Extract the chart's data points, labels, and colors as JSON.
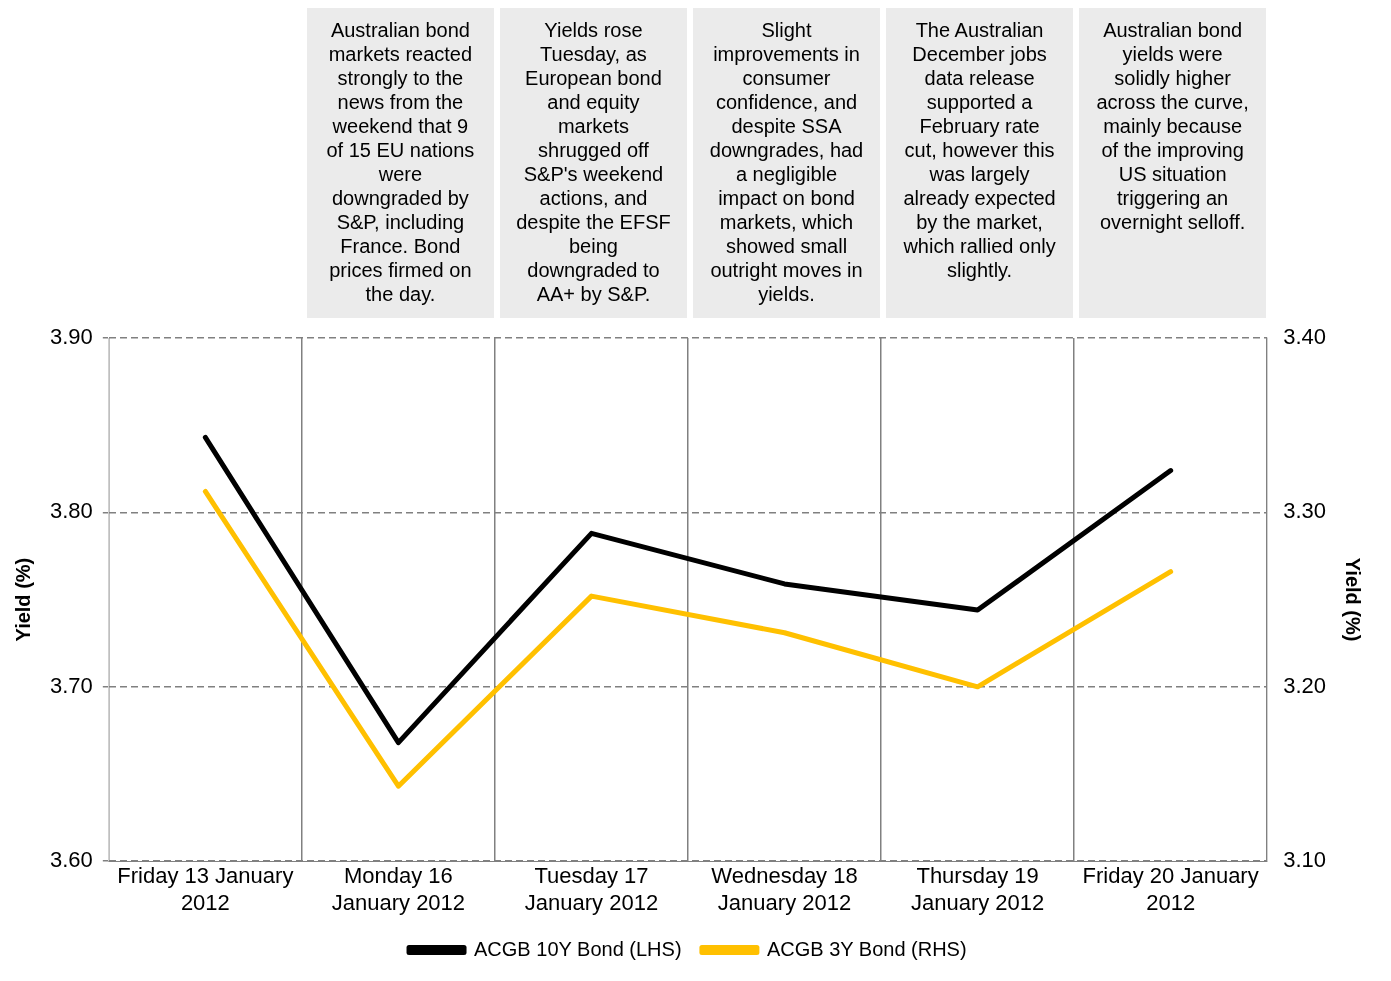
{
  "chart_data": {
    "type": "line",
    "categories": [
      "Friday 13 January 2012",
      "Monday 16 January 2012",
      "Tuesday 17 January 2012",
      "Wednesday 18 January 2012",
      "Thursday 19 January 2012",
      "Friday 20 January 2012"
    ],
    "series": [
      {
        "name": "ACGB 10Y Bond (LHS)",
        "color": "#000000",
        "values": [
          3.843,
          3.668,
          3.788,
          3.759,
          3.744,
          3.824
        ]
      },
      {
        "name": "ACGB 3Y Bond (RHS)",
        "color": "#ffc000",
        "axis": "y2",
        "values": [
          3.312,
          3.143,
          3.252,
          3.231,
          3.2,
          3.266
        ]
      }
    ],
    "ylabel": "Yield (%)",
    "y2label": "Yield (%)",
    "ylim": [
      3.6,
      3.9
    ],
    "yticks": [
      {
        "value": 3.6,
        "label": "3.60"
      },
      {
        "value": 3.7,
        "label": "3.70"
      },
      {
        "value": 3.8,
        "label": "3.80"
      },
      {
        "value": 3.9,
        "label": "3.90"
      }
    ],
    "y2lim": [
      3.1,
      3.4
    ],
    "y2ticks": [
      {
        "value": 3.1,
        "label": "3.10"
      },
      {
        "value": 3.2,
        "label": "3.20"
      },
      {
        "value": 3.3,
        "label": "3.30"
      },
      {
        "value": 3.4,
        "label": "3.40"
      }
    ],
    "grid": true,
    "legend": "bottom",
    "annotations": [
      "Australian bond markets reacted strongly to the news from the weekend that 9 of 15 EU nations were downgraded by S&P, including France. Bond prices firmed on the day.",
      "Yields rose Tuesday, as European bond and equity markets shrugged off S&P's weekend actions, and despite the EFSF being downgraded to AA+ by S&P.",
      "Slight improvements in consumer confidence, and despite SSA downgrades, had a negligible impact on bond markets, which showed small outright moves in yields.",
      "The Australian December jobs data release supported a February rate cut, however this was largely already expected by the market, which rallied only slightly.",
      "Australian bond yields were solidly higher across the curve, mainly because of the improving US situation triggering an overnight selloff."
    ]
  }
}
